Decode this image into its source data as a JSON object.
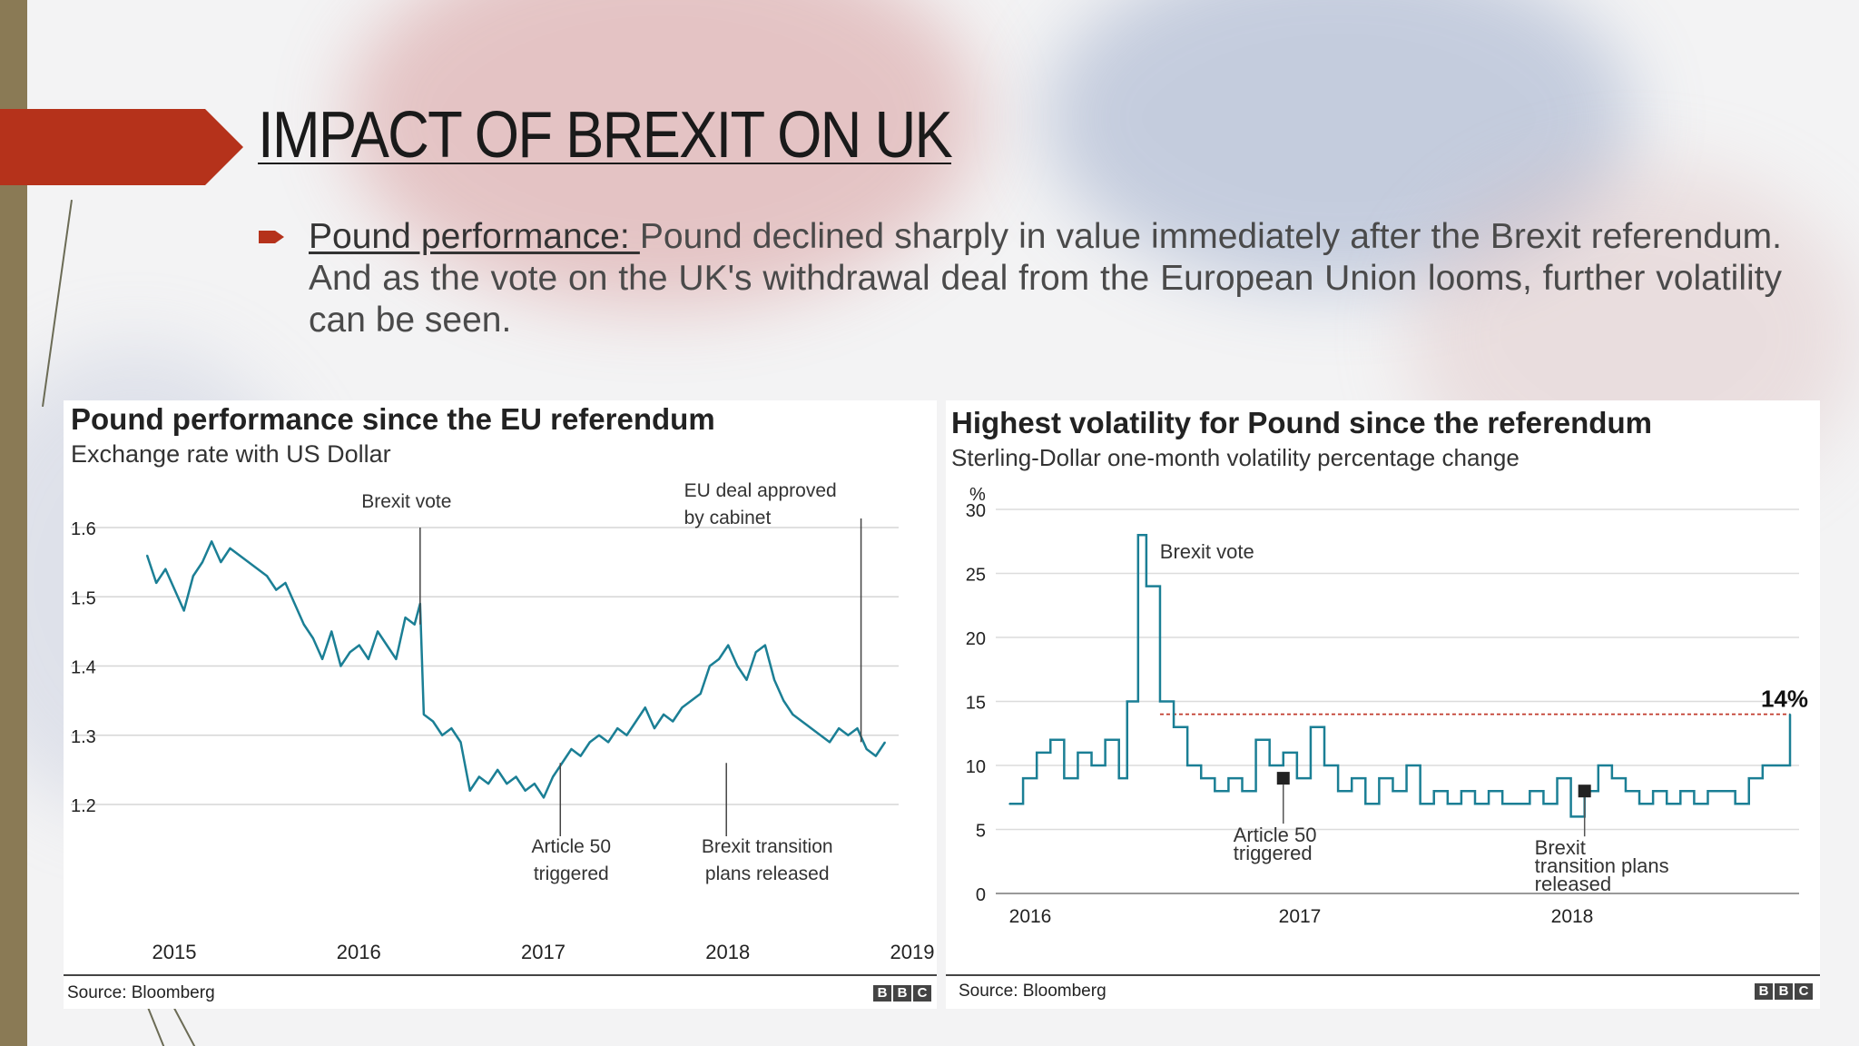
{
  "slide": {
    "title": "IMPACT OF BREXIT ON UK",
    "bullet_lead": "Pound performance: ",
    "bullet_text": "Pound declined sharply in value immediately after the Brexit referendum. And as the vote on the UK's withdrawal deal from the European Union looms, further volatility can be seen."
  },
  "colors": {
    "accent_arrow": "#b5321b",
    "line": "#1b7f95",
    "ref_line": "#c0392b"
  },
  "chart_data": [
    {
      "type": "line",
      "title": "Pound performance since the EU referendum",
      "subtitle": "Exchange rate with US Dollar",
      "source": "Source: Bloomberg",
      "brand": [
        "B",
        "B",
        "C"
      ],
      "x_ticks": [
        "2015",
        "2016",
        "2017",
        "2018",
        "2019"
      ],
      "y_ticks": [
        "1.6",
        "1.5",
        "1.4",
        "1.3",
        "1.2"
      ],
      "ylim": [
        1.2,
        1.6
      ],
      "grid": true,
      "annotations": [
        {
          "label": [
            "Brexit vote"
          ],
          "x": 2016.48,
          "placement": "top"
        },
        {
          "label": [
            "EU deal approved",
            "by cabinet"
          ],
          "x": 2018.87,
          "placement": "top"
        },
        {
          "label": [
            "Article 50",
            "triggered"
          ],
          "x": 2017.24,
          "placement": "bottom"
        },
        {
          "label": [
            "Brexit transition",
            "plans released"
          ],
          "x": 2018.14,
          "placement": "bottom"
        }
      ],
      "series": [
        {
          "x": [
            2015.0,
            2015.05,
            2015.1,
            2015.15,
            2015.2,
            2015.25,
            2015.3,
            2015.35,
            2015.4,
            2015.45,
            2015.5,
            2015.55,
            2015.6,
            2015.65,
            2015.7,
            2015.75,
            2015.8,
            2015.85,
            2015.9,
            2015.95,
            2016.0,
            2016.05,
            2016.1,
            2016.15,
            2016.2,
            2016.25,
            2016.3,
            2016.35,
            2016.4,
            2016.45,
            2016.48,
            2016.5,
            2016.55,
            2016.6,
            2016.65,
            2016.7,
            2016.75,
            2016.8,
            2016.85,
            2016.9,
            2016.95,
            2017.0,
            2017.05,
            2017.1,
            2017.15,
            2017.2,
            2017.25,
            2017.3,
            2017.35,
            2017.4,
            2017.45,
            2017.5,
            2017.55,
            2017.6,
            2017.65,
            2017.7,
            2017.75,
            2017.8,
            2017.85,
            2017.9,
            2017.95,
            2018.0,
            2018.05,
            2018.1,
            2018.15,
            2018.2,
            2018.25,
            2018.3,
            2018.35,
            2018.4,
            2018.45,
            2018.5,
            2018.55,
            2018.6,
            2018.65,
            2018.7,
            2018.75,
            2018.8,
            2018.85,
            2018.9,
            2018.95,
            2019.0
          ],
          "y": [
            1.56,
            1.52,
            1.54,
            1.51,
            1.48,
            1.53,
            1.55,
            1.58,
            1.55,
            1.57,
            1.56,
            1.55,
            1.54,
            1.53,
            1.51,
            1.52,
            1.49,
            1.46,
            1.44,
            1.41,
            1.45,
            1.4,
            1.42,
            1.43,
            1.41,
            1.45,
            1.43,
            1.41,
            1.47,
            1.46,
            1.49,
            1.33,
            1.32,
            1.3,
            1.31,
            1.29,
            1.22,
            1.24,
            1.23,
            1.25,
            1.23,
            1.24,
            1.22,
            1.23,
            1.21,
            1.24,
            1.26,
            1.28,
            1.27,
            1.29,
            1.3,
            1.29,
            1.31,
            1.3,
            1.32,
            1.34,
            1.31,
            1.33,
            1.32,
            1.34,
            1.35,
            1.36,
            1.4,
            1.41,
            1.43,
            1.4,
            1.38,
            1.42,
            1.43,
            1.38,
            1.35,
            1.33,
            1.32,
            1.31,
            1.3,
            1.29,
            1.31,
            1.3,
            1.31,
            1.28,
            1.27,
            1.29
          ]
        }
      ]
    },
    {
      "type": "line",
      "title": "Highest volatility for Pound since the referendum",
      "subtitle": "Sterling-Dollar one-month volatility percentage change",
      "source": "Source: Bloomberg",
      "brand": [
        "B",
        "B",
        "C"
      ],
      "ylabel": "%",
      "x_ticks": [
        "2016",
        "2017",
        "2018"
      ],
      "y_ticks": [
        "30",
        "25",
        "20",
        "15",
        "10",
        "5",
        "0"
      ],
      "ylim": [
        0,
        30
      ],
      "grid": true,
      "reference_value": 14,
      "reference_label": "14%",
      "annotations": [
        {
          "label": [
            "Brexit vote"
          ],
          "x": 2016.4,
          "placement": "peak"
        },
        {
          "label": [
            "Article 50",
            "triggered"
          ],
          "x": 2016.95,
          "placement": "marker"
        },
        {
          "label": [
            "Brexit",
            "transition plans",
            "released"
          ],
          "x": 2018.05,
          "placement": "marker"
        }
      ],
      "series": [
        {
          "x": [
            2015.95,
            2016.0,
            2016.05,
            2016.1,
            2016.15,
            2016.2,
            2016.25,
            2016.3,
            2016.35,
            2016.38,
            2016.42,
            2016.45,
            2016.5,
            2016.55,
            2016.6,
            2016.65,
            2016.7,
            2016.75,
            2016.8,
            2016.85,
            2016.9,
            2016.95,
            2017.0,
            2017.05,
            2017.1,
            2017.15,
            2017.2,
            2017.25,
            2017.3,
            2017.35,
            2017.4,
            2017.45,
            2017.5,
            2017.55,
            2017.6,
            2017.65,
            2017.7,
            2017.75,
            2017.8,
            2017.85,
            2017.9,
            2017.95,
            2018.0,
            2018.05,
            2018.1,
            2018.15,
            2018.2,
            2018.25,
            2018.3,
            2018.35,
            2018.4,
            2018.45,
            2018.5,
            2018.55,
            2018.6,
            2018.65,
            2018.7,
            2018.75,
            2018.8
          ],
          "y": [
            7,
            9,
            11,
            12,
            9,
            11,
            10,
            12,
            9,
            15,
            28,
            24,
            15,
            13,
            10,
            9,
            8,
            9,
            8,
            12,
            10,
            11,
            9,
            13,
            10,
            8,
            9,
            7,
            9,
            8,
            10,
            7,
            8,
            7,
            8,
            7,
            8,
            7,
            7,
            8,
            7,
            9,
            6,
            8,
            10,
            9,
            8,
            7,
            8,
            7,
            8,
            7,
            8,
            8,
            7,
            9,
            10,
            10,
            14
          ]
        }
      ]
    }
  ]
}
